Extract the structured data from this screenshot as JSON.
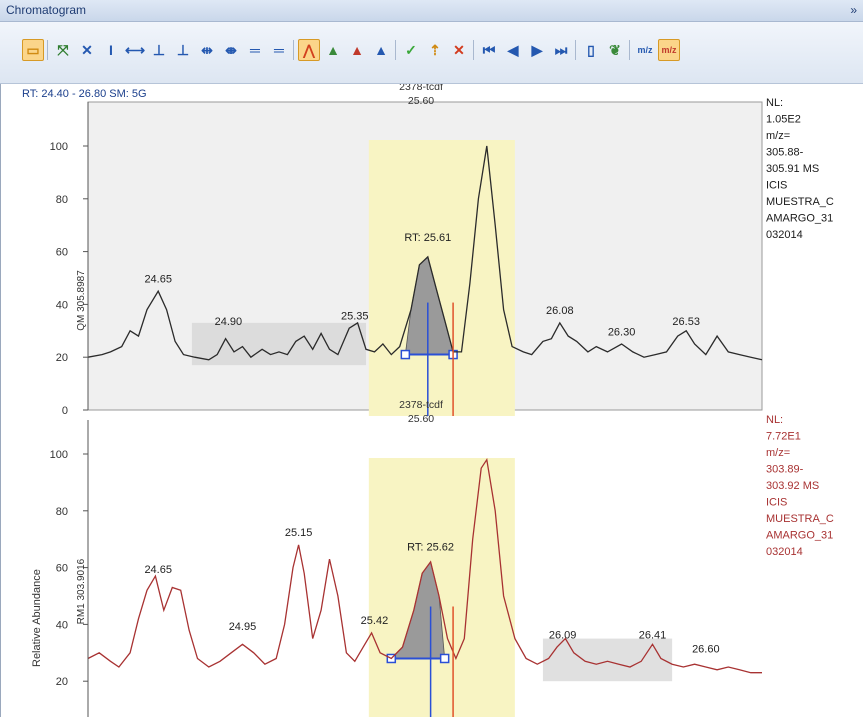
{
  "window": {
    "title": "Chromatogram",
    "pin_glyph": "»"
  },
  "toolbar": {
    "buttons": [
      {
        "name": "display-options",
        "glyph": "▭",
        "color": "#d08a12",
        "active": true
      },
      {
        "name": "auto-scale",
        "glyph": "⤧",
        "color": "#2f7d2f"
      },
      {
        "name": "zoom-xy",
        "glyph": "✕",
        "color": "#2458b0"
      },
      {
        "name": "zoom-y",
        "glyph": "I",
        "color": "#2458b0"
      },
      {
        "name": "zoom-x",
        "glyph": "⟷",
        "color": "#2458b0"
      },
      {
        "name": "peak-up",
        "glyph": "⊥",
        "color": "#2458b0"
      },
      {
        "name": "peak-down",
        "glyph": "⊥",
        "color": "#2458b0"
      },
      {
        "name": "zoom-in-x",
        "glyph": "⇹",
        "color": "#2458b0"
      },
      {
        "name": "zoom-out-x",
        "glyph": "⇼",
        "color": "#2458b0"
      },
      {
        "name": "zoom-in-y",
        "glyph": "═",
        "color": "#2458b0"
      },
      {
        "name": "zoom-out-y",
        "glyph": "═",
        "color": "#2458b0"
      },
      {
        "name": "peak-detect",
        "glyph": "⋀",
        "color": "#d2401e",
        "active": true
      },
      {
        "name": "peak-add",
        "glyph": "▲",
        "color": "#3a8a3a"
      },
      {
        "name": "peak-remove",
        "glyph": "▲",
        "color": "#c0392b"
      },
      {
        "name": "peak-edit",
        "glyph": "▲",
        "color": "#2458b0"
      },
      {
        "name": "accept",
        "glyph": "✓",
        "color": "#3aa83a"
      },
      {
        "name": "pointer",
        "glyph": "⇡",
        "color": "#d08a12"
      },
      {
        "name": "reject",
        "glyph": "✕",
        "color": "#d23b1e"
      },
      {
        "name": "first",
        "glyph": "⏮",
        "color": "#2458b0"
      },
      {
        "name": "previous",
        "glyph": "◀",
        "color": "#2458b0"
      },
      {
        "name": "next",
        "glyph": "▶",
        "color": "#2458b0"
      },
      {
        "name": "last",
        "glyph": "⏭",
        "color": "#2458b0"
      },
      {
        "name": "copy-page",
        "glyph": "▯",
        "color": "#2458b0"
      },
      {
        "name": "spectrum",
        "glyph": "❦",
        "color": "#3a8a3a"
      },
      {
        "name": "mz-range",
        "glyph": "m/z",
        "color": "#2458b0"
      },
      {
        "name": "mz-active",
        "glyph": "m/z",
        "color": "#c0392b",
        "active": true
      }
    ]
  },
  "header": {
    "range_text": "RT: 24.40 - 26.80  SM: 5G"
  },
  "colors": {
    "top_trace": "#2b2b2b",
    "bottom_trace": "#a83232",
    "highlight_band": "#f8f4c3",
    "rt_line": "#2a4fd6",
    "marker_line": "#e0522a",
    "top_info": "#1a1a1a",
    "bottom_info": "#a83232"
  },
  "panels": [
    {
      "id": "top",
      "trace_label": "QM  305.8987",
      "peak_name": "2378-tcdf",
      "peak_rt": "25.60",
      "selected_rt_label": "RT: 25.61",
      "info": [
        "NL:",
        "1.05E2",
        "m/z=",
        "305.88-",
        "305.91 MS",
        "ICIS",
        "MUESTRA_C",
        "AMARGO_31",
        "032014"
      ],
      "yticks": [
        "0",
        "20",
        "40",
        "60",
        "80",
        "100"
      ],
      "labels": [
        {
          "text": "24.65",
          "rt": 24.65,
          "y": 46
        },
        {
          "text": "24.90",
          "rt": 24.9,
          "y": 30
        },
        {
          "text": "25.35",
          "rt": 25.35,
          "y": 32
        },
        {
          "text": "26.08",
          "rt": 26.08,
          "y": 34
        },
        {
          "text": "26.30",
          "rt": 26.3,
          "y": 26
        },
        {
          "text": "26.53",
          "rt": 26.53,
          "y": 30
        }
      ],
      "noise_rt": [
        24.77,
        25.39
      ],
      "peak_int_rt": [
        25.53,
        25.7
      ],
      "trace": [
        [
          24.4,
          20
        ],
        [
          24.45,
          21
        ],
        [
          24.48,
          22
        ],
        [
          24.52,
          24
        ],
        [
          24.55,
          30
        ],
        [
          24.58,
          28
        ],
        [
          24.61,
          38
        ],
        [
          24.65,
          45
        ],
        [
          24.68,
          38
        ],
        [
          24.71,
          26
        ],
        [
          24.74,
          21
        ],
        [
          24.78,
          20
        ],
        [
          24.83,
          19
        ],
        [
          24.86,
          21
        ],
        [
          24.89,
          27
        ],
        [
          24.92,
          22
        ],
        [
          24.95,
          24
        ],
        [
          24.98,
          20
        ],
        [
          25.02,
          23
        ],
        [
          25.05,
          21
        ],
        [
          25.08,
          22
        ],
        [
          25.11,
          21
        ],
        [
          25.14,
          26
        ],
        [
          25.17,
          28
        ],
        [
          25.2,
          23
        ],
        [
          25.23,
          29
        ],
        [
          25.26,
          23
        ],
        [
          25.29,
          21
        ],
        [
          25.33,
          31
        ],
        [
          25.36,
          33
        ],
        [
          25.39,
          23
        ],
        [
          25.42,
          22
        ],
        [
          25.45,
          25
        ],
        [
          25.48,
          21
        ],
        [
          25.51,
          24
        ],
        [
          25.55,
          38
        ],
        [
          25.58,
          55
        ],
        [
          25.61,
          58
        ],
        [
          25.64,
          46
        ],
        [
          25.67,
          34
        ],
        [
          25.7,
          22
        ],
        [
          25.73,
          22
        ],
        [
          25.76,
          48
        ],
        [
          25.79,
          80
        ],
        [
          25.82,
          100
        ],
        [
          25.85,
          70
        ],
        [
          25.88,
          38
        ],
        [
          25.91,
          24
        ],
        [
          25.95,
          22
        ],
        [
          25.98,
          21
        ],
        [
          26.02,
          26
        ],
        [
          26.05,
          27
        ],
        [
          26.08,
          33
        ],
        [
          26.11,
          28
        ],
        [
          26.14,
          26
        ],
        [
          26.18,
          22
        ],
        [
          26.21,
          24
        ],
        [
          26.25,
          22
        ],
        [
          26.3,
          25
        ],
        [
          26.34,
          22
        ],
        [
          26.38,
          20
        ],
        [
          26.42,
          21
        ],
        [
          26.46,
          22
        ],
        [
          26.5,
          28
        ],
        [
          26.53,
          30
        ],
        [
          26.56,
          25
        ],
        [
          26.6,
          21
        ],
        [
          26.64,
          28
        ],
        [
          26.68,
          22
        ],
        [
          26.72,
          21
        ],
        [
          26.76,
          20
        ],
        [
          26.8,
          19
        ]
      ]
    },
    {
      "id": "bottom",
      "trace_label": "RM1  303.9016",
      "peak_name": "2378-tcdf",
      "peak_rt": "25.60",
      "selected_rt_label": "RT: 25.62",
      "yaxis_title": "Relative Abundance",
      "info": [
        "NL:",
        "7.72E1",
        "m/z=",
        "303.89-",
        "303.92 MS",
        "ICIS",
        "MUESTRA_C",
        "AMARGO_31",
        "032014"
      ],
      "yticks": [
        "20",
        "40",
        "60",
        "80",
        "100"
      ],
      "labels": [
        {
          "text": "24.65",
          "rt": 24.65,
          "y": 56
        },
        {
          "text": "24.95",
          "rt": 24.95,
          "y": 36
        },
        {
          "text": "25.15",
          "rt": 25.15,
          "y": 69
        },
        {
          "text": "25.42",
          "rt": 25.42,
          "y": 38
        },
        {
          "text": "26.09",
          "rt": 26.09,
          "y": 33
        },
        {
          "text": "26.41",
          "rt": 26.41,
          "y": 33
        },
        {
          "text": "26.60",
          "rt": 26.6,
          "y": 28
        }
      ],
      "noise_rt": [
        26.02,
        26.48
      ],
      "peak_int_rt": [
        25.48,
        25.67
      ],
      "trace": [
        [
          24.4,
          28
        ],
        [
          24.44,
          30
        ],
        [
          24.48,
          27
        ],
        [
          24.51,
          25
        ],
        [
          24.55,
          30
        ],
        [
          24.58,
          42
        ],
        [
          24.61,
          52
        ],
        [
          24.64,
          57
        ],
        [
          24.67,
          45
        ],
        [
          24.7,
          53
        ],
        [
          24.73,
          52
        ],
        [
          24.76,
          38
        ],
        [
          24.79,
          28
        ],
        [
          24.83,
          25
        ],
        [
          24.87,
          27
        ],
        [
          24.91,
          30
        ],
        [
          24.95,
          33
        ],
        [
          24.99,
          30
        ],
        [
          25.03,
          26
        ],
        [
          25.07,
          28
        ],
        [
          25.1,
          40
        ],
        [
          25.13,
          60
        ],
        [
          25.15,
          68
        ],
        [
          25.17,
          58
        ],
        [
          25.2,
          35
        ],
        [
          25.23,
          45
        ],
        [
          25.26,
          63
        ],
        [
          25.29,
          50
        ],
        [
          25.32,
          30
        ],
        [
          25.35,
          27
        ],
        [
          25.38,
          32
        ],
        [
          25.41,
          37
        ],
        [
          25.44,
          30
        ],
        [
          25.48,
          28
        ],
        [
          25.52,
          32
        ],
        [
          25.56,
          45
        ],
        [
          25.59,
          58
        ],
        [
          25.62,
          62
        ],
        [
          25.65,
          50
        ],
        [
          25.68,
          35
        ],
        [
          25.71,
          28
        ],
        [
          25.74,
          35
        ],
        [
          25.77,
          70
        ],
        [
          25.8,
          95
        ],
        [
          25.82,
          98
        ],
        [
          25.85,
          80
        ],
        [
          25.88,
          50
        ],
        [
          25.92,
          35
        ],
        [
          25.96,
          28
        ],
        [
          26.0,
          26
        ],
        [
          26.04,
          28
        ],
        [
          26.07,
          32
        ],
        [
          26.1,
          35
        ],
        [
          26.13,
          30
        ],
        [
          26.17,
          27
        ],
        [
          26.21,
          26
        ],
        [
          26.25,
          27
        ],
        [
          26.29,
          26
        ],
        [
          26.33,
          25
        ],
        [
          26.37,
          27
        ],
        [
          26.41,
          33
        ],
        [
          26.44,
          28
        ],
        [
          26.48,
          26
        ],
        [
          26.52,
          25
        ],
        [
          26.56,
          26
        ],
        [
          26.6,
          25
        ],
        [
          26.64,
          24
        ],
        [
          26.68,
          25
        ],
        [
          26.72,
          24
        ],
        [
          26.76,
          23
        ],
        [
          26.8,
          23
        ]
      ]
    }
  ]
}
